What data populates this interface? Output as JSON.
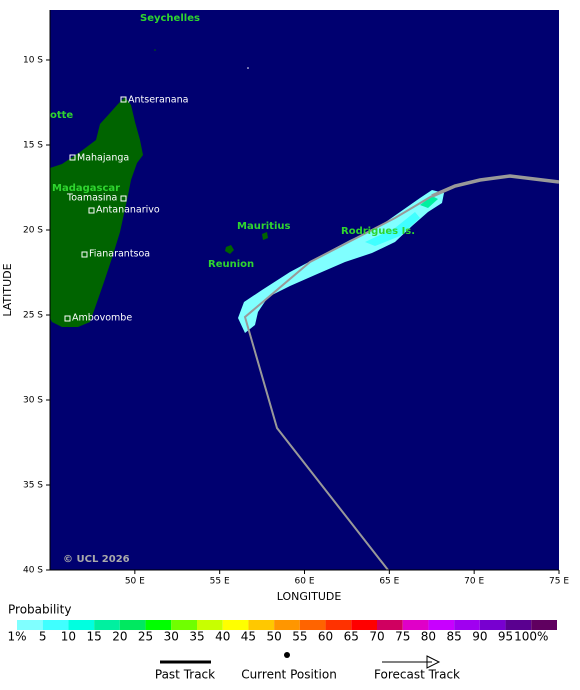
{
  "axes": {
    "x_title": "LONGITUDE",
    "y_title": "LATITUDE",
    "lon_range": [
      45,
      75
    ],
    "lat_range": [
      -7.06,
      -40
    ],
    "lon_ticks": [
      {
        "value": 50,
        "label": "50 E"
      },
      {
        "value": 55,
        "label": "55 E"
      },
      {
        "value": 60,
        "label": "60 E"
      },
      {
        "value": 65,
        "label": "65 E"
      },
      {
        "value": 70,
        "label": "70 E"
      },
      {
        "value": 75,
        "label": "75 E"
      }
    ],
    "lat_ticks": [
      {
        "value": -10,
        "label": "10 S"
      },
      {
        "value": -15,
        "label": "15 S"
      },
      {
        "value": -20,
        "label": "20 S"
      },
      {
        "value": -25,
        "label": "25 S"
      },
      {
        "value": -30,
        "label": "30 S"
      },
      {
        "value": -35,
        "label": "35 S"
      },
      {
        "value": -40,
        "label": "40 S"
      }
    ]
  },
  "places": [
    "Seychelles",
    "otte",
    "Madagascar",
    "Mauritius",
    "Reunion",
    "Rodrigues Is."
  ],
  "cities": [
    "Antseranana",
    "Mahajanga",
    "Toamasina",
    "Antananarivo",
    "Fianarantsoa",
    "Ambovombe"
  ],
  "copyright": "© UCL 2026",
  "legend": {
    "title": "Probability",
    "items": [
      {
        "label": "1%",
        "color": "#80ffff"
      },
      {
        "label": "5",
        "color": "#40ffff"
      },
      {
        "label": "10",
        "color": "#00ffe0"
      },
      {
        "label": "15",
        "color": "#00f0a0"
      },
      {
        "label": "20",
        "color": "#00e860"
      },
      {
        "label": "25",
        "color": "#00ff00"
      },
      {
        "label": "30",
        "color": "#70ff00"
      },
      {
        "label": "35",
        "color": "#c8ff00"
      },
      {
        "label": "40",
        "color": "#ffff00"
      },
      {
        "label": "45",
        "color": "#ffc800"
      },
      {
        "label": "50",
        "color": "#ff9600"
      },
      {
        "label": "55",
        "color": "#ff6400"
      },
      {
        "label": "60",
        "color": "#ff3200"
      },
      {
        "label": "65",
        "color": "#ff0000"
      },
      {
        "label": "70",
        "color": "#d00060"
      },
      {
        "label": "75",
        "color": "#e000c8"
      },
      {
        "label": "80",
        "color": "#c800ff"
      },
      {
        "label": "85",
        "color": "#a000f0"
      },
      {
        "label": "90",
        "color": "#7800d0"
      },
      {
        "label": "95",
        "color": "#5a0090"
      },
      {
        "label": "100%",
        "color": "#600060"
      }
    ],
    "keys": [
      "Past Track",
      "Current Position",
      "Forecast Track"
    ]
  }
}
